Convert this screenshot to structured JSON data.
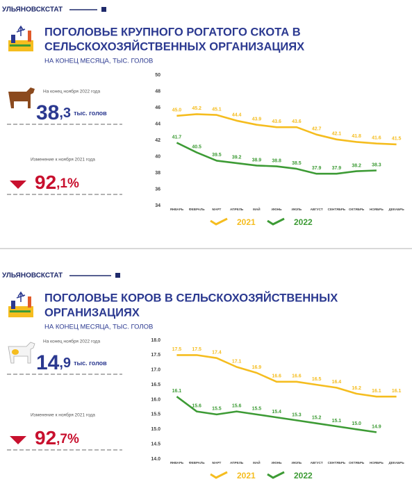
{
  "panels": [
    {
      "brand": "УЛЬЯНОВСКСТАТ",
      "title_lines": [
        "ПОГОЛОВЬЕ КРУПНОГО РОГАТОГО СКОТА  В",
        "СЕЛЬСКОХОЗЯЙСТВЕННЫХ ОРГАНИЗАЦИЯХ"
      ],
      "subtitle": "НА КОНЕЦ МЕСЯЦА, ТЫС. ГОЛОВ",
      "current": {
        "caption": "На конец ноября 2022 года",
        "int": "38",
        "frac": ",3",
        "unit": "тыс. голов"
      },
      "change": {
        "caption": "Изменение  к  ноября 2021 года",
        "int": "92",
        "frac": ",1%"
      }
    },
    {
      "brand": "УЛЬЯНОВСКСТАТ",
      "title_lines": [
        "ПОГОЛОВЬЕ КОРОВ В СЕЛЬСКОХОЗЯЙСТВЕННЫХ",
        "ОРГАНИЗАЦИЯХ"
      ],
      "subtitle": "НА КОНЕЦ МЕСЯЦА, ТЫС. ГОЛОВ",
      "current": {
        "caption": "На конец ноября 2022 года",
        "int": "14",
        "frac": ",9",
        "unit": "тыс. голов"
      },
      "change": {
        "caption": "Изменение  к  ноября 2021 года",
        "int": "92",
        "frac": ",7%"
      }
    }
  ],
  "chart_data": [
    {
      "type": "line",
      "categories": [
        "ЯНВАРЬ",
        "ФЕВРАЛЬ",
        "МАРТ",
        "АПРЕЛЬ",
        "МАЙ",
        "ИЮНЬ",
        "ИЮЛЬ",
        "АВГУСТ",
        "СЕНТЯБРЬ",
        "ОКТЯБРЬ",
        "НОЯБРЬ",
        "ДЕКАБРЬ"
      ],
      "series": [
        {
          "name": "2021",
          "color": "#f5bd1f",
          "values": [
            45,
            45.2,
            45.1,
            44.4,
            43.9,
            43.6,
            43.6,
            42.7,
            42.1,
            41.8,
            41.6,
            41.5
          ],
          "value_labels": [
            "45.0",
            "45.2",
            "45.1",
            "44.4",
            "43.9",
            "43.6",
            "43.6",
            "42.7",
            "42.1",
            "41.8",
            "41.6",
            "41.5"
          ]
        },
        {
          "name": "2022",
          "color": "#3d9b35",
          "values": [
            41.7,
            40.5,
            39.5,
            39.2,
            38.9,
            38.8,
            38.5,
            37.9,
            37.9,
            38.2,
            38.3,
            null
          ],
          "value_labels": [
            "41.7",
            "40.5",
            "39.5",
            "39.2",
            "38.9",
            "38.8",
            "38.5",
            "37.9",
            "37.9",
            "38.2",
            "38.3",
            null
          ]
        }
      ],
      "ylim": [
        34,
        50
      ],
      "yticks": [
        34,
        36,
        38,
        40,
        42,
        44,
        46,
        48,
        50
      ],
      "grid": false,
      "legend": "bottom"
    },
    {
      "type": "line",
      "categories": [
        "ЯНВАРЬ",
        "ФЕВРАЛЬ",
        "МАРТ",
        "АПРЕЛЬ",
        "МАЙ",
        "ИЮНЬ",
        "ИЮЛЬ",
        "АВГУСТ",
        "СЕНТЯБРЬ",
        "ОКТЯБРЬ",
        "НОЯБРЬ",
        "ДЕКАБРЬ"
      ],
      "series": [
        {
          "name": "2021",
          "color": "#f5bd1f",
          "values": [
            17.5,
            17.5,
            17.4,
            17.1,
            16.9,
            16.6,
            16.6,
            16.5,
            16.4,
            16.2,
            16.1,
            16.1
          ]
        },
        {
          "name": "2022",
          "color": "#3d9b35",
          "values": [
            16.1,
            15.6,
            15.5,
            15.6,
            15.5,
            15.4,
            15.3,
            15.2,
            15.1,
            15,
            14.9,
            null
          ],
          "value_labels": [
            "16.1",
            "15.6",
            "15.5",
            "15.6",
            "15.5",
            "15.4",
            "15.3",
            "15.2",
            "15.1",
            "15.0",
            "14.9",
            null
          ]
        }
      ],
      "ylim": [
        14,
        18
      ],
      "yticks": [
        {
          "value": 14,
          "label": "14.0"
        },
        {
          "value": 14.5,
          "label": "14.5"
        },
        {
          "value": 15,
          "label": "15.0"
        },
        {
          "value": 15.5,
          "label": "15.5"
        },
        {
          "value": 16,
          "label": "16.0"
        },
        {
          "value": 16.5,
          "label": "16.5"
        },
        {
          "value": 17,
          "label": "17.0"
        },
        {
          "value": 17.5,
          "label": "17.5"
        },
        {
          "value": 18,
          "label": "18.0"
        }
      ],
      "grid": false,
      "legend": "bottom"
    }
  ]
}
